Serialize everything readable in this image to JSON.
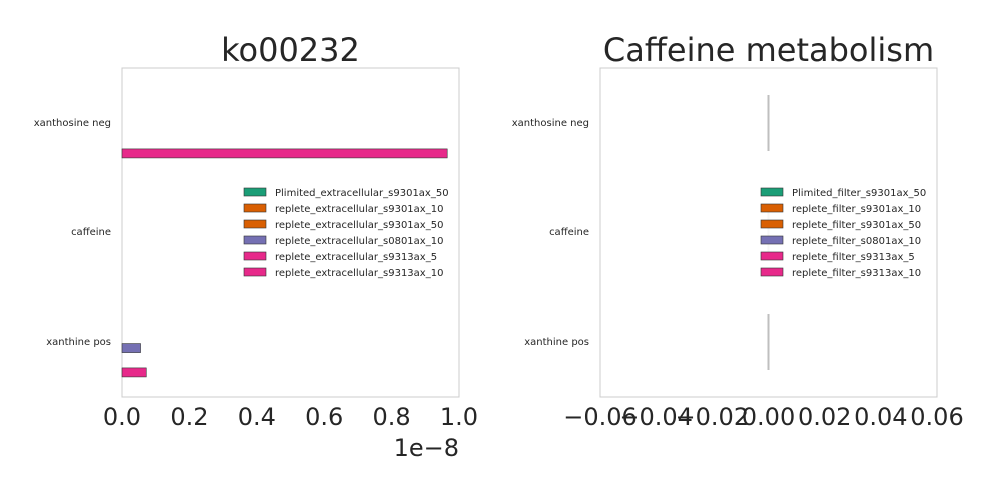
{
  "chart_data": [
    {
      "type": "bar",
      "orientation": "horizontal",
      "title": "ko00232",
      "xlabel": "",
      "ylabel": "",
      "xlim": [
        0,
        1.0
      ],
      "x_scale_label": "1e−8",
      "x_ticks": [
        "0.0",
        "0.2",
        "0.4",
        "0.6",
        "0.8",
        "1.0"
      ],
      "grid": false,
      "legend_position": "center-right",
      "categories": [
        "xanthosine neg",
        "caffeine",
        "xanthine pos"
      ],
      "series": [
        {
          "name": "Plimited_extracellular_s9301ax_50",
          "color": "#1b9e77",
          "values": [
            0,
            0,
            0
          ]
        },
        {
          "name": "replete_extracellular_s9301ax_10",
          "color": "#d95f02",
          "values": [
            0,
            0,
            0
          ]
        },
        {
          "name": "replete_extracellular_s9301ax_50",
          "color": "#d95f02",
          "values": [
            0,
            0,
            0
          ]
        },
        {
          "name": "replete_extracellular_s0801ax_10",
          "color": "#7570b3",
          "values": [
            0,
            0,
            0.055
          ]
        },
        {
          "name": "replete_extracellular_s9313ax_5",
          "color": "#e7298a",
          "values": [
            0,
            0,
            0
          ]
        },
        {
          "name": "replete_extracellular_s9313ax_10",
          "color": "#e7298a",
          "values": [
            0.965,
            0,
            0.072
          ]
        }
      ]
    },
    {
      "type": "bar",
      "orientation": "horizontal",
      "title": "Caffeine metabolism",
      "xlabel": "",
      "ylabel": "",
      "xlim": [
        -0.06,
        0.06
      ],
      "x_ticks": [
        "−0.06",
        "−0.04",
        "−0.02",
        "0.00",
        "0.02",
        "0.04",
        "0.06"
      ],
      "grid": false,
      "legend_position": "center-right",
      "categories": [
        "xanthosine neg",
        "caffeine",
        "xanthine pos"
      ],
      "series": [
        {
          "name": "Plimited_filter_s9301ax_50",
          "color": "#1b9e77",
          "values": [
            0,
            0,
            0
          ]
        },
        {
          "name": "replete_filter_s9301ax_10",
          "color": "#d95f02",
          "values": [
            0,
            0,
            0
          ]
        },
        {
          "name": "replete_filter_s9301ax_50",
          "color": "#d95f02",
          "values": [
            0,
            0,
            0
          ]
        },
        {
          "name": "replete_filter_s0801ax_10",
          "color": "#7570b3",
          "values": [
            0,
            0,
            0
          ]
        },
        {
          "name": "replete_filter_s9313ax_5",
          "color": "#e7298a",
          "values": [
            0,
            0,
            0
          ]
        },
        {
          "name": "replete_filter_s9313ax_10",
          "color": "#e7298a",
          "values": [
            0,
            0,
            0
          ]
        }
      ]
    }
  ]
}
